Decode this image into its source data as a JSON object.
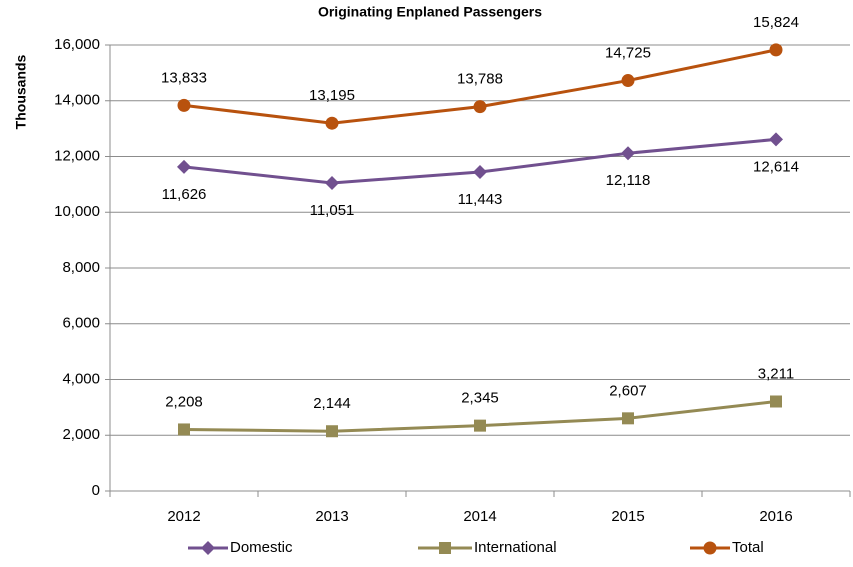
{
  "chart_data": {
    "type": "line",
    "title": "Originating Enplaned Passengers",
    "y_label": "Thousands",
    "categories": [
      "2012",
      "2013",
      "2014",
      "2015",
      "2016"
    ],
    "series": [
      {
        "name": "Domestic",
        "color": "#71508f",
        "marker": "diamond",
        "label_position": "below",
        "values": [
          11626,
          11051,
          11443,
          12118,
          12614
        ],
        "value_labels": [
          "11,626",
          "11,051",
          "11,443",
          "12,118",
          "12,614"
        ]
      },
      {
        "name": "International",
        "color": "#948a54",
        "marker": "square",
        "label_position": "above",
        "values": [
          2208,
          2144,
          2345,
          2607,
          3211
        ],
        "value_labels": [
          "2,208",
          "2,144",
          "2,345",
          "2,607",
          "3,211"
        ]
      },
      {
        "name": "Total",
        "color": "#b8520e",
        "marker": "circle",
        "label_position": "above",
        "values": [
          13833,
          13195,
          13788,
          14725,
          15824
        ],
        "value_labels": [
          "13,833",
          "13,195",
          "13,788",
          "14,725",
          "15,824"
        ]
      }
    ],
    "ylim": [
      0,
      16000
    ],
    "yticks": [
      0,
      {
        "value": 2000,
        "label": "2,000"
      },
      {
        "value": 4000,
        "label": "4,000"
      },
      {
        "value": 6000,
        "label": "6,000"
      },
      {
        "value": 8000,
        "label": "8,000"
      },
      {
        "value": 10000,
        "label": "10,000"
      },
      {
        "value": 12000,
        "label": "12,000"
      },
      {
        "value": 14000,
        "label": "14,000"
      },
      {
        "value": 16000,
        "label": "16,000"
      }
    ],
    "grid": true,
    "legend": "bottom"
  }
}
